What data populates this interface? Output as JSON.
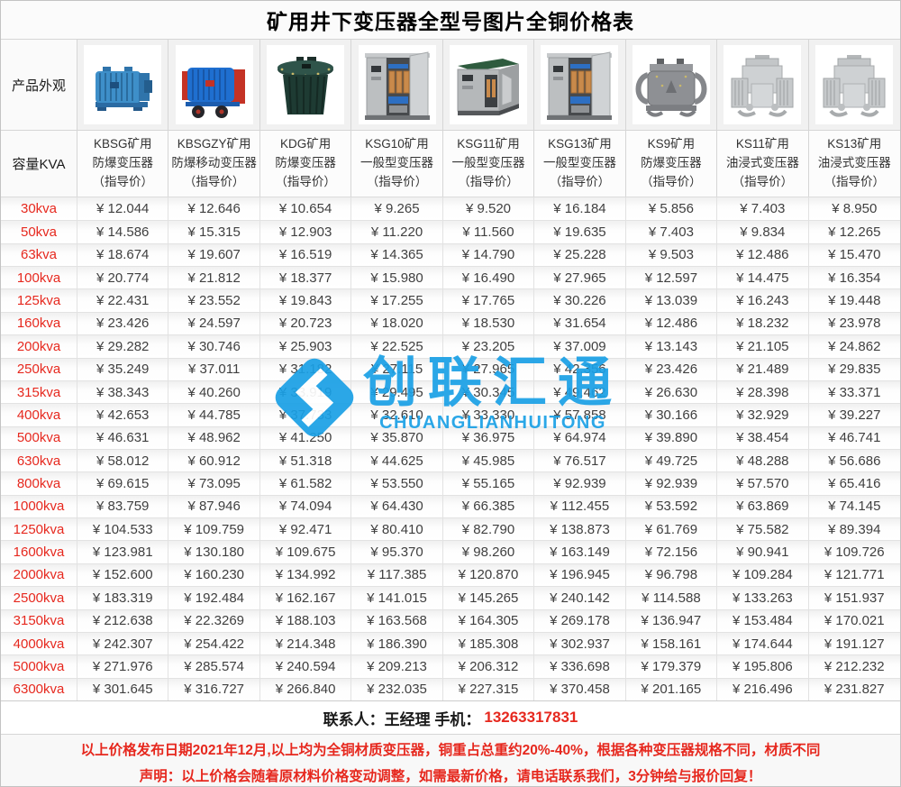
{
  "title": "矿用井下变压器全型号图片全铜价格表",
  "corner": {
    "photo_label": "产品外观",
    "capacity_label": "容量KVA"
  },
  "watermark": {
    "text": "创联汇通",
    "subtext": "CHUANGLIANHUITONG",
    "color": "#1aa0e6"
  },
  "columns": [
    {
      "lines": [
        "KBSG矿用",
        "防爆变压器",
        "（指导价）"
      ],
      "image": "blue-corrugated-transformer"
    },
    {
      "lines": [
        "KBSGZY矿用",
        "防爆移动变压器",
        "（指导价）"
      ],
      "image": "blue-mobile-transformer-with-wheels"
    },
    {
      "lines": [
        "KDG矿用",
        "防爆变压器",
        "（指导价）"
      ],
      "image": "dark-cylindrical-transformer"
    },
    {
      "lines": [
        "KSG10矿用",
        "一般型变压器",
        "（指导价）"
      ],
      "image": "stainless-cabinet-open-doors"
    },
    {
      "lines": [
        "KSG11矿用",
        "一般型变压器",
        "（指导价）"
      ],
      "image": "stainless-cabinet-green-roof"
    },
    {
      "lines": [
        "KSG13矿用",
        "一般型变压器",
        "（指导价）"
      ],
      "image": "stainless-cabinet-open-doors"
    },
    {
      "lines": [
        "KS9矿用",
        "防爆变压器",
        "（指导价）"
      ],
      "image": "gray-loop-radiator-transformer"
    },
    {
      "lines": [
        "KS11矿用",
        "油浸式变压器",
        "（指导价）"
      ],
      "image": "gray-oil-immersed-transformer"
    },
    {
      "lines": [
        "KS13矿用",
        "油浸式变压器",
        "（指导价）"
      ],
      "image": "gray-oil-immersed-transformer"
    }
  ],
  "rows": [
    {
      "capacity": "30kva",
      "prices": [
        "¥ 12.044",
        "¥ 12.646",
        "¥ 10.654",
        "¥ 9.265",
        "¥ 9.520",
        "¥ 16.184",
        "¥ 5.856",
        "¥ 7.403",
        "¥ 8.950"
      ]
    },
    {
      "capacity": "50kva",
      "prices": [
        "¥ 14.586",
        "¥ 15.315",
        "¥ 12.903",
        "¥ 11.220",
        "¥ 11.560",
        "¥ 19.635",
        "¥ 7.403",
        "¥ 9.834",
        "¥ 12.265"
      ]
    },
    {
      "capacity": "63kva",
      "prices": [
        "¥ 18.674",
        "¥ 19.607",
        "¥ 16.519",
        "¥ 14.365",
        "¥ 14.790",
        "¥ 25.228",
        "¥ 9.503",
        "¥ 12.486",
        "¥ 15.470"
      ]
    },
    {
      "capacity": "100kva",
      "prices": [
        "¥ 20.774",
        "¥ 21.812",
        "¥ 18.377",
        "¥ 15.980",
        "¥ 16.490",
        "¥ 27.965",
        "¥ 12.597",
        "¥ 14.475",
        "¥ 16.354"
      ]
    },
    {
      "capacity": "125kva",
      "prices": [
        "¥ 22.431",
        "¥ 23.552",
        "¥ 19.843",
        "¥ 17.255",
        "¥ 17.765",
        "¥ 30.226",
        "¥ 13.039",
        "¥ 16.243",
        "¥ 19.448"
      ]
    },
    {
      "capacity": "160kva",
      "prices": [
        "¥ 23.426",
        "¥ 24.597",
        "¥ 20.723",
        "¥ 18.020",
        "¥ 18.530",
        "¥ 31.654",
        "¥ 12.486",
        "¥ 18.232",
        "¥ 23.978"
      ]
    },
    {
      "capacity": "200kva",
      "prices": [
        "¥ 29.282",
        "¥ 30.746",
        "¥ 25.903",
        "¥ 22.525",
        "¥ 23.205",
        "¥ 37.009",
        "¥ 13.143",
        "¥ 21.105",
        "¥ 24.862"
      ]
    },
    {
      "capacity": "250kva",
      "prices": [
        "¥ 35.249",
        "¥ 37.011",
        "¥ 31.182",
        "¥ 27.115",
        "¥ 27.965",
        "¥ 42.356",
        "¥ 23.426",
        "¥ 21.489",
        "¥ 29.835"
      ]
    },
    {
      "capacity": "315kva",
      "prices": [
        "¥ 38.343",
        "¥ 40.260",
        "¥ 33.919",
        "¥ 29.495",
        "¥ 30.345",
        "¥ 49.462",
        "¥ 26.630",
        "¥ 28.398",
        "¥ 33.371"
      ]
    },
    {
      "capacity": "400kva",
      "prices": [
        "¥ 42.653",
        "¥ 44.785",
        "¥ 37.733",
        "¥ 32.610",
        "¥ 33.330",
        "¥ 57.858",
        "¥ 30.166",
        "¥ 32.929",
        "¥ 39.227"
      ]
    },
    {
      "capacity": "500kva",
      "prices": [
        "¥ 46.631",
        "¥ 48.962",
        "¥ 41.250",
        "¥ 35.870",
        "¥ 36.975",
        "¥ 64.974",
        "¥ 39.890",
        "¥ 38.454",
        "¥ 46.741"
      ]
    },
    {
      "capacity": "630kva",
      "prices": [
        "¥ 58.012",
        "¥ 60.912",
        "¥ 51.318",
        "¥ 44.625",
        "¥ 45.985",
        "¥ 76.517",
        "¥ 49.725",
        "¥ 48.288",
        "¥ 56.686"
      ]
    },
    {
      "capacity": "800kva",
      "prices": [
        "¥ 69.615",
        "¥ 73.095",
        "¥ 61.582",
        "¥ 53.550",
        "¥ 55.165",
        "¥ 92.939",
        "¥ 92.939",
        "¥ 57.570",
        "¥ 65.416"
      ]
    },
    {
      "capacity": "1000kva",
      "prices": [
        "¥ 83.759",
        "¥ 87.946",
        "¥ 74.094",
        "¥ 64.430",
        "¥ 66.385",
        "¥ 112.455",
        "¥ 53.592",
        "¥ 63.869",
        "¥ 74.145"
      ]
    },
    {
      "capacity": "1250kva",
      "prices": [
        "¥ 104.533",
        "¥ 109.759",
        "¥ 92.471",
        "¥ 80.410",
        "¥ 82.790",
        "¥ 138.873",
        "¥ 61.769",
        "¥ 75.582",
        "¥ 89.394"
      ]
    },
    {
      "capacity": "1600kva",
      "prices": [
        "¥ 123.981",
        "¥ 130.180",
        "¥ 109.675",
        "¥ 95.370",
        "¥ 98.260",
        "¥ 163.149",
        "¥ 72.156",
        "¥ 90.941",
        "¥ 109.726"
      ]
    },
    {
      "capacity": "2000kva",
      "prices": [
        "¥ 152.600",
        "¥ 160.230",
        "¥ 134.992",
        "¥ 117.385",
        "¥ 120.870",
        "¥ 196.945",
        "¥ 96.798",
        "¥ 109.284",
        "¥ 121.771"
      ]
    },
    {
      "capacity": "2500kva",
      "prices": [
        "¥ 183.319",
        "¥ 192.484",
        "¥ 162.167",
        "¥ 141.015",
        "¥ 145.265",
        "¥ 240.142",
        "¥ 114.588",
        "¥ 133.263",
        "¥ 151.937"
      ]
    },
    {
      "capacity": "3150kva",
      "prices": [
        "¥ 212.638",
        "¥ 22.3269",
        "¥ 188.103",
        "¥ 163.568",
        "¥ 164.305",
        "¥ 269.178",
        "¥ 136.947",
        "¥ 153.484",
        "¥ 170.021"
      ]
    },
    {
      "capacity": "4000kva",
      "prices": [
        "¥ 242.307",
        "¥ 254.422",
        "¥ 214.348",
        "¥ 186.390",
        "¥ 185.308",
        "¥ 302.937",
        "¥ 158.161",
        "¥ 174.644",
        "¥ 191.127"
      ]
    },
    {
      "capacity": "5000kva",
      "prices": [
        "¥ 271.976",
        "¥ 285.574",
        "¥ 240.594",
        "¥ 209.213",
        "¥ 206.312",
        "¥ 336.698",
        "¥ 179.379",
        "¥ 195.806",
        "¥ 212.232"
      ]
    },
    {
      "capacity": "6300kva",
      "prices": [
        "¥ 301.645",
        "¥ 316.727",
        "¥ 266.840",
        "¥ 232.035",
        "¥ 227.315",
        "¥ 370.458",
        "¥ 201.165",
        "¥ 216.496",
        "¥ 231.827"
      ]
    }
  ],
  "contact": {
    "prefix": "联系人：王经理  手机：",
    "phone": "13263317831"
  },
  "notes": [
    "以上价格发布日期2021年12月,以上均为全铜材质变压器，铜重占总重约20%-40%，根据各种变压器规格不同，材质不同",
    "声明：以上价格会随着原材料价格变动调整，如需最新价格，请电话联系我们，3分钟给与报价回复！"
  ],
  "colors": {
    "accent_red": "#e6281e",
    "watermark_blue": "#1aa0e6",
    "text_dark": "#3f3f3f",
    "border": "#d6d6d6"
  }
}
